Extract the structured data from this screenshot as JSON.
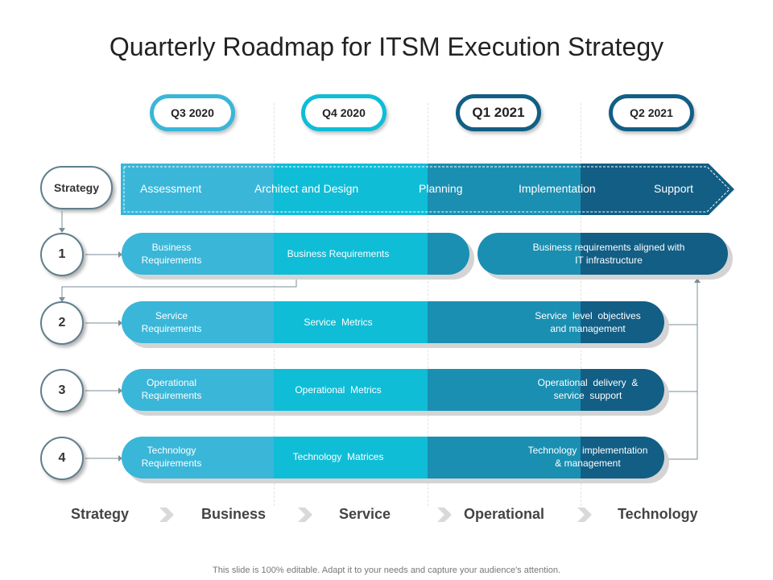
{
  "title": "Quarterly Roadmap for ITSM Execution Strategy",
  "quarters": [
    "Q3 2020",
    "Q4 2020",
    "Q1 2021",
    "Q2 2021"
  ],
  "strategy_label": "Strategy",
  "stages": [
    "Assessment",
    "Architect and Design",
    "Planning",
    "Implementation",
    "Support"
  ],
  "rows": [
    {
      "num": "1",
      "start": "Business\nRequirements",
      "middle": "Business Requirements",
      "end": "Business requirements  aligned with\nIT infrastructure"
    },
    {
      "num": "2",
      "start": "Service\nRequirements",
      "middle": "Service  Metrics",
      "end": "Service  level  objectives\nand management"
    },
    {
      "num": "3",
      "start": "Operational\nRequirements",
      "middle": "Operational  Metrics",
      "end": "Operational  delivery  &\nservice  support"
    },
    {
      "num": "4",
      "start": "Technology\nRequirements",
      "middle": "Technology  Matrices",
      "end": "Technology  implementation\n& management"
    }
  ],
  "footer_flow": [
    "Strategy",
    "Business",
    "Service",
    "Operational",
    "Technology"
  ],
  "note": "This slide is 100% editable. Adapt it to your needs and capture your audience's attention.",
  "colors": {
    "seg1": "#3ab6d8",
    "seg2": "#0fbdd7",
    "seg3": "#1a8fb2",
    "seg4": "#125e85"
  }
}
